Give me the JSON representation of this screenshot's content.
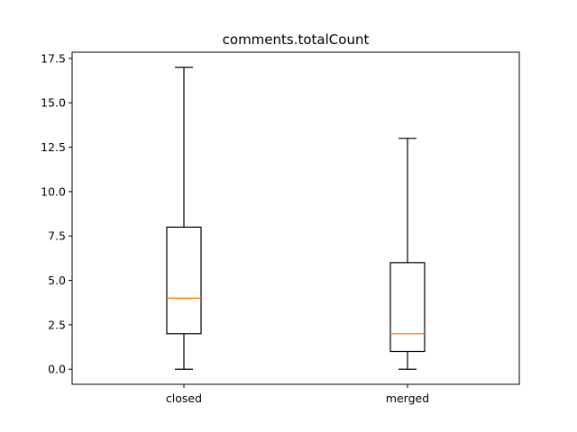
{
  "chart_data": {
    "type": "boxplot",
    "title": "comments.totalCount",
    "xlabel": "",
    "ylabel": "",
    "ylim": [
      -0.85,
      17.85
    ],
    "yticks": [
      "0.0",
      "2.5",
      "5.0",
      "7.5",
      "10.0",
      "12.5",
      "15.0",
      "17.5"
    ],
    "ytick_values": [
      0,
      2.5,
      5,
      7.5,
      10,
      12.5,
      15,
      17.5
    ],
    "categories": [
      "closed",
      "merged"
    ],
    "boxes": [
      {
        "category": "closed",
        "whisker_low": 0,
        "q1": 2,
        "median": 4,
        "q3": 8,
        "whisker_high": 17
      },
      {
        "category": "merged",
        "whisker_low": 0,
        "q1": 1,
        "median": 2,
        "q3": 6,
        "whisker_high": 13
      }
    ],
    "grid": false,
    "colors": {
      "box": "#000000",
      "median": "#ff7f0e",
      "axes": "#000000",
      "background": "#ffffff"
    }
  }
}
